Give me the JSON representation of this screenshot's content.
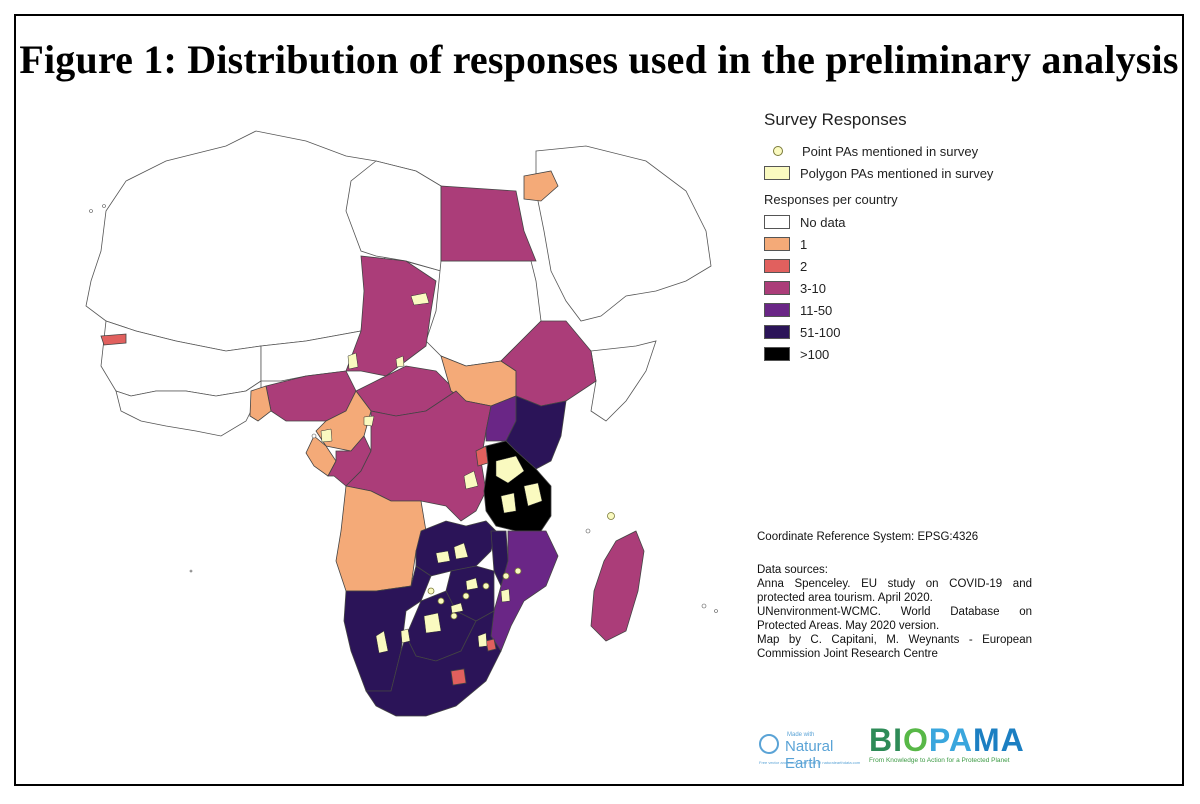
{
  "title": "Figure 1: Distribution of responses used in the preliminary analysis",
  "legend": {
    "heading": "Survey Responses",
    "points_label": "Point PAs mentioned in survey",
    "polygons_label": "Polygon PAs mentioned in survey",
    "per_country_heading": "Responses per country",
    "classes": [
      {
        "label": "No data",
        "color": "#ffffff"
      },
      {
        "label": "1",
        "color": "#f4aa78"
      },
      {
        "label": "2",
        "color": "#e1605e"
      },
      {
        "label": "3-10",
        "color": "#ab3d79"
      },
      {
        "label": "11-50",
        "color": "#6a2686"
      },
      {
        "label": "51-100",
        "color": "#2b1458"
      },
      {
        "label": ">100",
        "color": "#000000"
      }
    ],
    "pa_fill_color": "#fafac0"
  },
  "crs": "Coordinate Reference System: EPSG:4326",
  "sources": {
    "heading": "Data sources:",
    "line1": "Anna Spenceley. EU study on COVID-19 and protected area tourism. April 2020.",
    "line2": "UNenvironment-WCMC. World Database on Protected Areas. May 2020 version.",
    "credit": "Map by C. Capitani, M. Weynants - European Commission Joint Research Centre"
  },
  "logos": {
    "ne_made": "Made with",
    "ne_name": "Natural Earth",
    "ne_tag": "Free vector and raster map data @ naturalearthdata.com",
    "bio_letters": [
      "BI",
      "O",
      "PA",
      "MA"
    ],
    "bio_tag": "From Knowledge to Action for a Protected Planet"
  },
  "map": {
    "country_classes": {
      "egypt": "3-10",
      "jordan": "1",
      "chad": "3-10",
      "nigeria": "3-10",
      "cameroon": "1",
      "gabon": "1",
      "congo": "3-10",
      "car": "3-10",
      "drc": "3-10",
      "south_sudan": "1",
      "ethiopia": "3-10",
      "uganda": "11-50",
      "kenya": "51-100",
      "rwanda": "2",
      "tanzania": ">100",
      "angola": "1",
      "zambia": "51-100",
      "malawi": "51-100",
      "mozambique": "11-50",
      "zimbabwe": "51-100",
      "namibia": "51-100",
      "botswana": "51-100",
      "south_africa": "51-100",
      "eswatini": "2",
      "lesotho": "2",
      "madagascar": "3-10",
      "gambia": "2",
      "benin": "1"
    }
  }
}
